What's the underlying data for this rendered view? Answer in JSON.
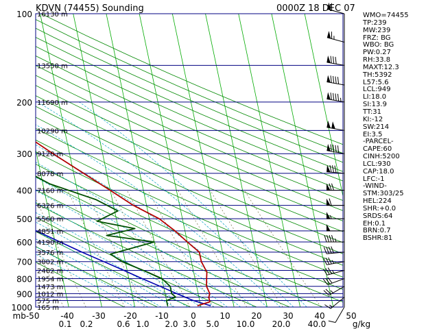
{
  "chart_data": {
    "type": "skew-t log-p sounding",
    "title": "KDVN (74455) Sounding",
    "time": "0000Z 18 DEC 07",
    "pressure_ticks": [
      "100",
      "200",
      "300",
      "400",
      "500",
      "600",
      "700",
      "800",
      "900",
      "1000"
    ],
    "bottom_axis_labels": [
      "mb-50",
      "-40",
      "-30",
      "-20",
      "-10",
      "0",
      "10",
      "20",
      "30",
      "40",
      "50"
    ],
    "mixing_ratio_labels": [
      "0.1",
      "0.2",
      "0.6",
      "1.0",
      "2.0",
      "3.0",
      "5.0",
      "10.0",
      "20.0",
      "40.0"
    ],
    "mixing_ratio_unit": "g/kg",
    "height_labels": [
      {
        "p": 100,
        "label": "16130 m"
      },
      {
        "p": 150,
        "label": "13550 m"
      },
      {
        "p": 200,
        "label": "11690 m"
      },
      {
        "p": 250,
        "label": "10290 m"
      },
      {
        "p": 300,
        "label": "9120 m"
      },
      {
        "p": 350,
        "label": "8078 m"
      },
      {
        "p": 400,
        "label": "7160 m"
      },
      {
        "p": 450,
        "label": "6326 m"
      },
      {
        "p": 500,
        "label": "5560 m"
      },
      {
        "p": 550,
        "label": "4851 m"
      },
      {
        "p": 600,
        "label": "4190 m"
      },
      {
        "p": 650,
        "label": "3576 m"
      },
      {
        "p": 700,
        "label": "3002 m"
      },
      {
        "p": 750,
        "label": "2462 m"
      },
      {
        "p": 800,
        "label": "1954 m"
      },
      {
        "p": 850,
        "label": "1473 m"
      },
      {
        "p": 900,
        "label": "1012 m"
      },
      {
        "p": 950,
        "label": "575 m"
      },
      {
        "p": 1000,
        "label": "165 m"
      }
    ],
    "temperature_profile": [
      {
        "p": 990,
        "t": -1
      },
      {
        "p": 960,
        "t": 3
      },
      {
        "p": 925,
        "t": 3
      },
      {
        "p": 900,
        "t": 3.5
      },
      {
        "p": 850,
        "t": 3
      },
      {
        "p": 800,
        "t": 3.5
      },
      {
        "p": 760,
        "t": 4
      },
      {
        "p": 700,
        "t": 3
      },
      {
        "p": 650,
        "t": 3
      },
      {
        "p": 600,
        "t": 0
      },
      {
        "p": 550,
        "t": -3
      },
      {
        "p": 500,
        "t": -7
      },
      {
        "p": 450,
        "t": -14
      },
      {
        "p": 400,
        "t": -20
      },
      {
        "p": 350,
        "t": -27
      },
      {
        "p": 300,
        "t": -35
      },
      {
        "p": 250,
        "t": -44
      },
      {
        "p": 225,
        "t": -47
      },
      {
        "p": 200,
        "t": -46
      },
      {
        "p": 190,
        "t": -37
      },
      {
        "p": 175,
        "t": -37
      },
      {
        "p": 165,
        "t": -41
      },
      {
        "p": 155,
        "t": -46
      },
      {
        "p": 145,
        "t": -46
      },
      {
        "p": 130,
        "t": -52
      },
      {
        "p": 115,
        "t": -53
      },
      {
        "p": 100,
        "t": -55
      }
    ],
    "dewpoint_profile": [
      {
        "p": 990,
        "t": -10
      },
      {
        "p": 950,
        "t": -10
      },
      {
        "p": 925,
        "t": -7
      },
      {
        "p": 900,
        "t": -8
      },
      {
        "p": 850,
        "t": -8
      },
      {
        "p": 800,
        "t": -10
      },
      {
        "p": 760,
        "t": -14
      },
      {
        "p": 700,
        "t": -21
      },
      {
        "p": 660,
        "t": -24
      },
      {
        "p": 600,
        "t": -10
      },
      {
        "p": 570,
        "t": -24
      },
      {
        "p": 540,
        "t": -15
      },
      {
        "p": 510,
        "t": -26
      },
      {
        "p": 470,
        "t": -19
      },
      {
        "p": 430,
        "t": -25
      },
      {
        "p": 380,
        "t": -38
      },
      {
        "p": 330,
        "t": -47
      },
      {
        "p": 280,
        "t": -57
      },
      {
        "p": 240,
        "t": -63
      },
      {
        "p": 210,
        "t": -64
      },
      {
        "p": 195,
        "t": -58
      },
      {
        "p": 170,
        "t": -55
      },
      {
        "p": 150,
        "t": -56
      },
      {
        "p": 130,
        "t": -62
      },
      {
        "p": 115,
        "t": -66
      },
      {
        "p": 100,
        "t": -71
      }
    ],
    "parcel_profile": [
      {
        "p": 990,
        "t": 3
      },
      {
        "p": 949,
        "t": -2
      },
      {
        "p": 900,
        "t": -6.5
      },
      {
        "p": 850,
        "t": -11
      },
      {
        "p": 800,
        "t": -16
      },
      {
        "p": 750,
        "t": -21
      },
      {
        "p": 700,
        "t": -26.5
      },
      {
        "p": 650,
        "t": -32.5
      },
      {
        "p": 600,
        "t": -38.5
      },
      {
        "p": 550,
        "t": -45
      },
      {
        "p": 500,
        "t": -52
      },
      {
        "p": 450,
        "t": -60
      },
      {
        "p": 400,
        "t": -68
      },
      {
        "p": 350,
        "t": -77
      },
      {
        "p": 300,
        "t": -86
      },
      {
        "p": 250,
        "t": -96
      },
      {
        "p": 200,
        "t": -107
      },
      {
        "p": 150,
        "t": -120
      },
      {
        "p": 115,
        "t": -131
      }
    ],
    "wind_barbs": [
      {
        "p": 1000,
        "dir": 210,
        "kt": 10
      },
      {
        "p": 925,
        "dir": 230,
        "kt": 15
      },
      {
        "p": 850,
        "dir": 240,
        "kt": 25
      },
      {
        "p": 800,
        "dir": 250,
        "kt": 30
      },
      {
        "p": 750,
        "dir": 255,
        "kt": 35
      },
      {
        "p": 700,
        "dir": 260,
        "kt": 35
      },
      {
        "p": 650,
        "dir": 265,
        "kt": 40
      },
      {
        "p": 600,
        "dir": 270,
        "kt": 45
      },
      {
        "p": 550,
        "dir": 270,
        "kt": 50
      },
      {
        "p": 500,
        "dir": 270,
        "kt": 55
      },
      {
        "p": 450,
        "dir": 270,
        "kt": 60
      },
      {
        "p": 400,
        "dir": 270,
        "kt": 70
      },
      {
        "p": 350,
        "dir": 275,
        "kt": 80
      },
      {
        "p": 300,
        "dir": 280,
        "kt": 90
      },
      {
        "p": 250,
        "dir": 280,
        "kt": 100
      },
      {
        "p": 200,
        "dir": 280,
        "kt": 95
      },
      {
        "p": 175,
        "dir": 280,
        "kt": 90
      },
      {
        "p": 150,
        "dir": 280,
        "kt": 80
      },
      {
        "p": 125,
        "dir": 285,
        "kt": 65
      },
      {
        "p": 100,
        "dir": 285,
        "kt": 60
      }
    ],
    "indices": [
      "WMO=74455",
      "TP:239",
      "MW:239",
      "FRZ: BG",
      "WBO: BG",
      "PW:0.27",
      "RH:33.8",
      "MAXT:12.3",
      "TH:5392",
      "L57:5.6",
      "LCL:949",
      "LI:18.0",
      "SI:13.9",
      "TT:31",
      "KI:-12",
      "SW:214",
      "EI:3.5",
      "-PARCEL-",
      "CAPE:60",
      "CINH:5200",
      "LCL:930",
      "CAP:18.0",
      "LFC:-1",
      "-WIND-",
      "STM:303/25",
      "HEL:224",
      "SHR:+0.0",
      "SRDS:64",
      "EH:0.1",
      "BRN:0.7",
      "BSHR:81"
    ]
  },
  "colors": {
    "isobar": "#000080",
    "isotherm": "#00aa00",
    "dry_adiabat": "#008800",
    "moist_adiabat": "#00a0c0",
    "mixing_ratio": "#707040",
    "temperature": "#b40000",
    "dewpoint": "#005000",
    "parcel": "#0000b0",
    "text": "#000000"
  }
}
